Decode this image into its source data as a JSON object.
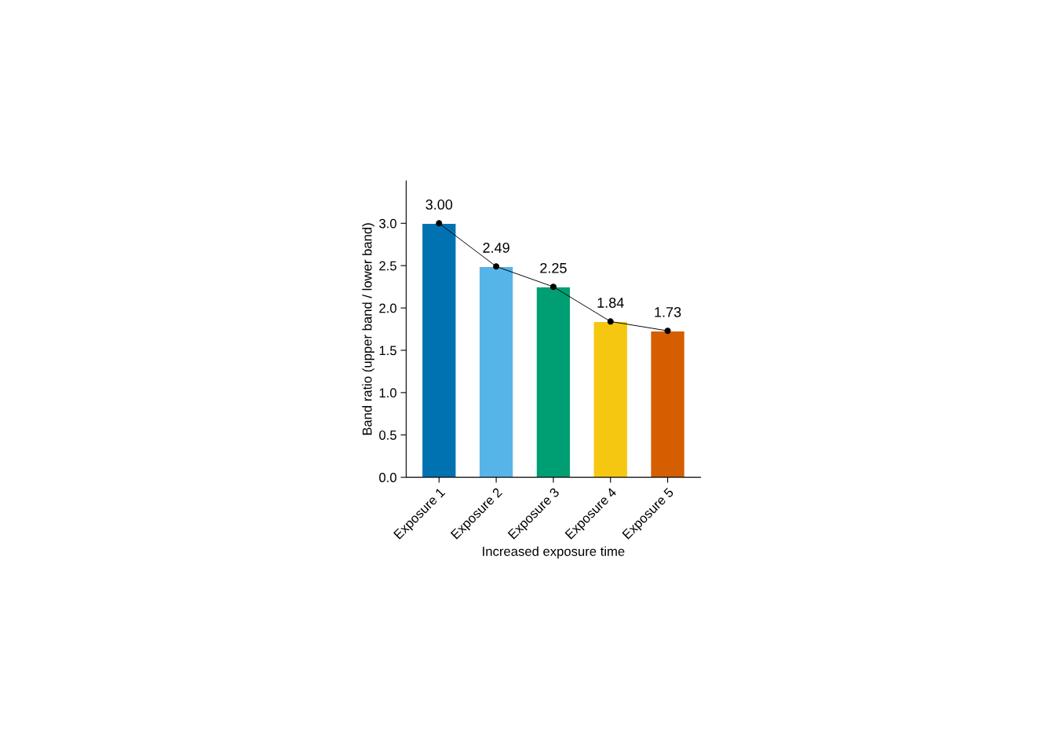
{
  "chart_data": {
    "type": "bar",
    "xlabel": "Increased exposure time",
    "ylabel": "Band ratio (upper band / lower band)",
    "categories": [
      "Exposure 1",
      "Exposure 2",
      "Exposure 3",
      "Exposure 4",
      "Exposure 5"
    ],
    "series": [
      {
        "colors": [
          "#0072b2",
          "#56b4e9",
          "#009e73",
          "#f5c710",
          "#d55e00"
        ],
        "values": [
          3.0,
          2.49,
          2.25,
          1.84,
          1.73
        ],
        "value_labels": [
          "3.00",
          "2.49",
          "2.25",
          "1.84",
          "1.73"
        ]
      },
      {
        "type": "line",
        "color": "#000000",
        "values": [
          3.0,
          2.49,
          2.25,
          1.84,
          1.73
        ],
        "marker": "circle",
        "line_style": "solid"
      }
    ],
    "ylim": [
      0,
      3.5
    ],
    "yticks": [
      {
        "value": 0,
        "label": "0.0"
      },
      {
        "value": 0.5,
        "label": "0.5"
      },
      {
        "value": 1.0,
        "label": "1.0"
      },
      {
        "value": 1.5,
        "label": "1.5"
      },
      {
        "value": 2.0,
        "label": "2.0"
      },
      {
        "value": 2.5,
        "label": "2.5"
      },
      {
        "value": 3.0,
        "label": "3.0"
      }
    ],
    "grid": false
  }
}
